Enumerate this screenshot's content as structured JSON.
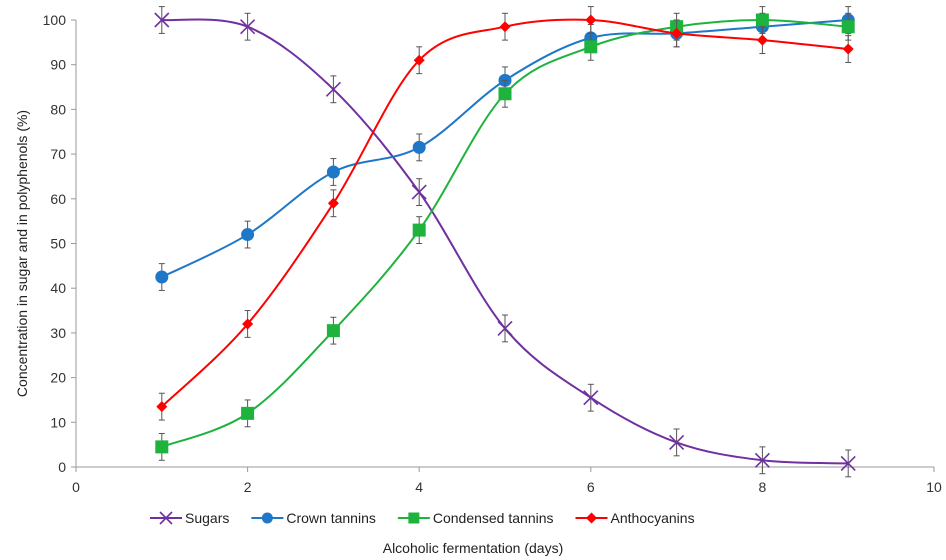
{
  "chart_data": {
    "type": "line",
    "title": "",
    "xlabel": "Alcoholic fermentation (days)",
    "ylabel": "Concentration in sugar and in polyphenols (%)",
    "xlim": [
      0,
      10
    ],
    "ylim": [
      0,
      100
    ],
    "x_ticks": [
      0,
      2,
      4,
      6,
      8,
      10
    ],
    "y_ticks": [
      0,
      10,
      20,
      30,
      40,
      50,
      60,
      70,
      80,
      90,
      100
    ],
    "grid": false,
    "legend_position": "bottom",
    "series": [
      {
        "name": "Sugars",
        "color": "#7030A0",
        "marker": "x",
        "x": [
          1,
          2,
          3,
          4,
          5,
          6,
          7,
          8,
          9
        ],
        "y": [
          100,
          98.5,
          84.5,
          61.5,
          31,
          15.5,
          5.5,
          1.5,
          0.8
        ],
        "error": [
          3,
          3,
          3,
          3,
          3,
          3,
          3,
          3,
          3
        ]
      },
      {
        "name": "Crown tannins",
        "color": "#1F77C8",
        "marker": "circle",
        "x": [
          1,
          2,
          3,
          4,
          5,
          6,
          7,
          8,
          9
        ],
        "y": [
          42.5,
          52,
          66,
          71.5,
          86.5,
          96,
          97,
          98.5,
          100
        ],
        "error": [
          3,
          3,
          3,
          3,
          3,
          3,
          3,
          3,
          3
        ]
      },
      {
        "name": "Condensed tannins",
        "color": "#1DB33C",
        "marker": "square",
        "x": [
          1,
          2,
          3,
          4,
          5,
          6,
          7,
          8,
          9
        ],
        "y": [
          4.5,
          12,
          30.5,
          53,
          83.5,
          94,
          98.5,
          100,
          98.5
        ],
        "error": [
          3,
          3,
          3,
          3,
          3,
          3,
          3,
          3,
          3
        ]
      },
      {
        "name": "Anthocyanins",
        "color": "#FF0000",
        "marker": "diamond",
        "x": [
          1,
          2,
          3,
          4,
          5,
          6,
          7,
          8,
          9
        ],
        "y": [
          13.5,
          32,
          59,
          91,
          98.5,
          100,
          97,
          95.5,
          93.5
        ],
        "error": [
          3,
          3,
          3,
          3,
          3,
          3,
          3,
          3,
          3
        ]
      }
    ]
  }
}
